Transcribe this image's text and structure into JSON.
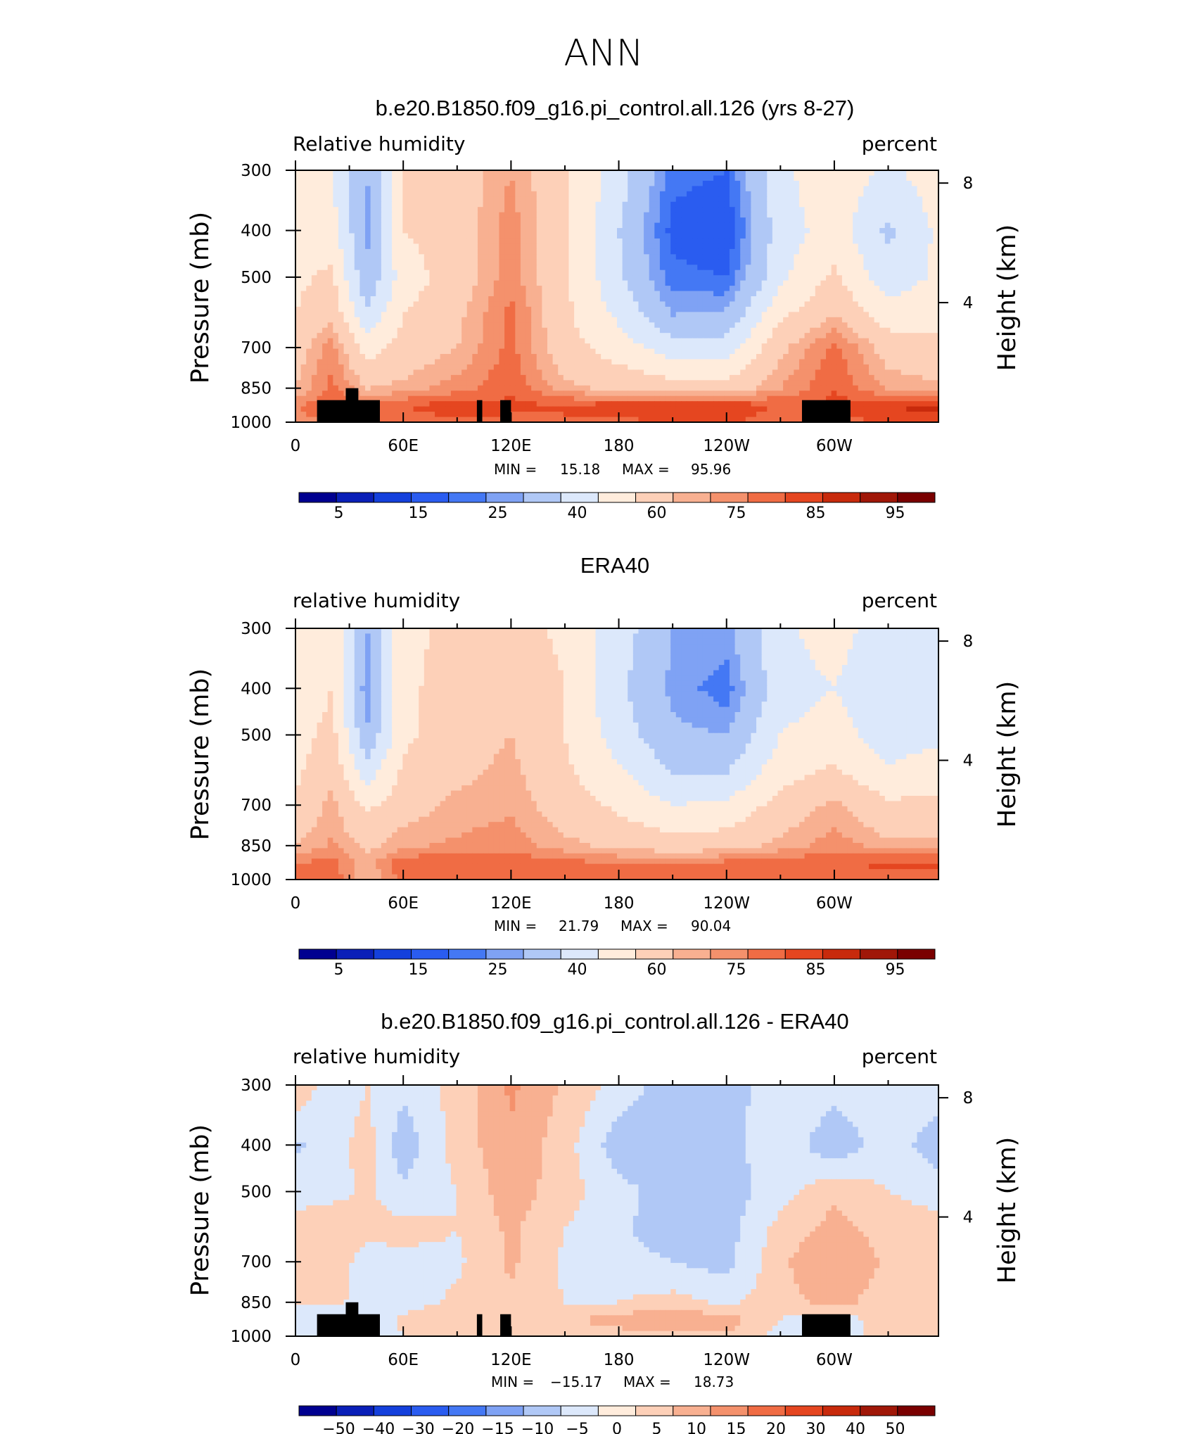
{
  "figure_title": "ANN",
  "colors": {
    "rh_scale": [
      "#000090",
      "#0a1fb8",
      "#1440dc",
      "#2a5cf0",
      "#4478f4",
      "#7fa2f4",
      "#b0c8f6",
      "#dce8fb",
      "#ffecdc",
      "#fdd0b8",
      "#f8b091",
      "#f4916c",
      "#f06c44",
      "#e54620",
      "#c82a0c",
      "#a01708",
      "#7a0000"
    ],
    "land": "#000000"
  },
  "chart_data": [
    {
      "type": "heatmap",
      "title": "b.e20.B1850.f09_g16.pi_control.all.126 (yrs 8-27)",
      "left_label": "Relative humidity",
      "right_label": "percent",
      "ylabel": "Pressure (mb)",
      "y2label": "Height (km)",
      "x_ticks": [
        "0",
        "60E",
        "120E",
        "180",
        "120W",
        "60W"
      ],
      "x_tick_lon": [
        0,
        60,
        120,
        180,
        240,
        300
      ],
      "xlim": [
        0,
        358
      ],
      "y_ticks": [
        "300",
        "400",
        "500",
        "700",
        "850",
        "1000"
      ],
      "y_tick_p": [
        300,
        400,
        500,
        700,
        850,
        1000
      ],
      "ylim": [
        1000,
        300
      ],
      "y2_ticks": [
        "8",
        "4"
      ],
      "y2_tick_km": [
        8,
        4
      ],
      "min_label": "MIN =",
      "min_value": "15.18",
      "max_label": "MAX =",
      "max_value": "95.96",
      "colorbar_labels": [
        "5",
        "15",
        "25",
        "40",
        "60",
        "75",
        "85",
        "95"
      ],
      "has_land_mask": true,
      "fields": [
        {
          "lon": [
            0,
            20,
            40,
            60,
            90,
            120,
            150,
            180,
            210,
            240,
            270,
            300,
            330,
            358
          ],
          "p": [
            300,
            400,
            500,
            600,
            700,
            850,
            925,
            1000
          ],
          "rows": [
            [
              55,
              50,
              30,
              62,
              65,
              75,
              62,
              45,
              22,
              20,
              48,
              56,
              48,
              55
            ],
            [
              55,
              55,
              28,
              60,
              65,
              78,
              62,
              40,
              18,
              15,
              45,
              55,
              38,
              52
            ],
            [
              58,
              62,
              32,
              55,
              65,
              78,
              62,
              42,
              22,
              20,
              48,
              62,
              44,
              52
            ],
            [
              60,
              68,
              42,
              60,
              68,
              82,
              62,
              48,
              30,
              32,
              58,
              70,
              55,
              58
            ],
            [
              65,
              78,
              55,
              64,
              70,
              82,
              64,
              55,
              45,
              45,
              68,
              82,
              66,
              62
            ],
            [
              70,
              82,
              70,
              72,
              78,
              84,
              72,
              68,
              65,
              65,
              75,
              85,
              74,
              72
            ],
            [
              80,
              84,
              82,
              85,
              88,
              86,
              86,
              88,
              89,
              90,
              84,
              86,
              90,
              92
            ],
            [
              78,
              80,
              80,
              82,
              84,
              84,
              84,
              84,
              85,
              86,
              82,
              82,
              86,
              88
            ]
          ]
        }
      ]
    },
    {
      "type": "heatmap",
      "title": "ERA40",
      "left_label": "relative humidity",
      "right_label": "percent",
      "ylabel": "Pressure (mb)",
      "y2label": "Height (km)",
      "x_ticks": [
        "0",
        "60E",
        "120E",
        "180",
        "120W",
        "60W"
      ],
      "x_tick_lon": [
        0,
        60,
        120,
        180,
        240,
        300
      ],
      "xlim": [
        0,
        358
      ],
      "y_ticks": [
        "300",
        "400",
        "500",
        "700",
        "850",
        "1000"
      ],
      "y_tick_p": [
        300,
        400,
        500,
        700,
        850,
        1000
      ],
      "ylim": [
        1000,
        300
      ],
      "y2_ticks": [
        "8",
        "4"
      ],
      "y2_tick_km": [
        8,
        4
      ],
      "min_label": "MIN =",
      "min_value": "21.79",
      "max_label": "MAX =",
      "max_value": "90.04",
      "colorbar_labels": [
        "5",
        "15",
        "25",
        "40",
        "60",
        "75",
        "85",
        "95"
      ],
      "has_land_mask": false,
      "fields": [
        {
          "lon": [
            0,
            20,
            40,
            60,
            90,
            120,
            150,
            180,
            210,
            240,
            270,
            300,
            330,
            358
          ],
          "p": [
            300,
            400,
            500,
            600,
            700,
            850,
            925,
            1000
          ],
          "rows": [
            [
              50,
              58,
              30,
              58,
              62,
              64,
              58,
              45,
              30,
              28,
              48,
              54,
              45,
              48
            ],
            [
              50,
              60,
              25,
              58,
              64,
              68,
              60,
              42,
              28,
              22,
              46,
              50,
              40,
              44
            ],
            [
              55,
              64,
              32,
              58,
              66,
              70,
              60,
              45,
              32,
              30,
              50,
              55,
              44,
              48
            ],
            [
              58,
              68,
              45,
              62,
              68,
              72,
              62,
              52,
              40,
              40,
              56,
              62,
              52,
              56
            ],
            [
              62,
              72,
              58,
              66,
              72,
              74,
              65,
              58,
              50,
              52,
              64,
              72,
              62,
              62
            ],
            [
              70,
              76,
              68,
              74,
              76,
              78,
              72,
              68,
              65,
              66,
              72,
              78,
              72,
              72
            ],
            [
              80,
              82,
              72,
              84,
              84,
              84,
              82,
              80,
              80,
              82,
              84,
              84,
              86,
              86
            ],
            [
              82,
              84,
              70,
              82,
              82,
              82,
              82,
              82,
              82,
              82,
              84,
              84,
              84,
              84
            ]
          ]
        }
      ]
    },
    {
      "type": "heatmap",
      "title": "b.e20.B1850.f09_g16.pi_control.all.126 - ERA40",
      "left_label": "relative humidity",
      "right_label": "percent",
      "ylabel": "Pressure (mb)",
      "y2label": "Height (km)",
      "x_ticks": [
        "0",
        "60E",
        "120E",
        "180",
        "120W",
        "60W"
      ],
      "x_tick_lon": [
        0,
        60,
        120,
        180,
        240,
        300
      ],
      "xlim": [
        0,
        358
      ],
      "y_ticks": [
        "300",
        "400",
        "500",
        "700",
        "850",
        "1000"
      ],
      "y_tick_p": [
        300,
        400,
        500,
        700,
        850,
        1000
      ],
      "ylim": [
        1000,
        300
      ],
      "y2_ticks": [
        "8",
        "4"
      ],
      "y2_tick_km": [
        8,
        4
      ],
      "min_label": "MIN =",
      "min_value": "−15.17",
      "max_label": "MAX =",
      "max_value": "18.73",
      "colorbar_labels": [
        "−50",
        "−40",
        "−30",
        "−20",
        "−15",
        "−10",
        "−5",
        "0",
        "5",
        "10",
        "15",
        "20",
        "30",
        "40",
        "50"
      ],
      "has_land_mask": true,
      "fields": [
        {
          "lon": [
            0,
            20,
            40,
            60,
            90,
            120,
            150,
            180,
            210,
            240,
            270,
            300,
            330,
            358
          ],
          "p": [
            300,
            400,
            500,
            600,
            700,
            850,
            925,
            1000
          ],
          "rows": [
            [
              4,
              -3,
              0,
              -4,
              2,
              11,
              4,
              -2,
              -8,
              -8,
              -1,
              -3,
              -2,
              -2
            ],
            [
              -6,
              -2,
              2,
              -8,
              2,
              9,
              2,
              -8,
              -9,
              -7,
              -1,
              -9,
              -2,
              -8
            ],
            [
              -2,
              -2,
              1,
              -4,
              0,
              8,
              2,
              -3,
              -8,
              -8,
              -2,
              4,
              0,
              -2
            ],
            [
              2,
              5,
              2,
              2,
              0,
              6,
              0,
              -4,
              -8,
              -7,
              2,
              7,
              3,
              2
            ],
            [
              2,
              4,
              -3,
              -2,
              -1,
              6,
              -1,
              -3,
              -5,
              -7,
              4,
              10,
              4,
              0
            ],
            [
              0,
              2,
              -3,
              -2,
              1,
              4,
              0,
              0,
              2,
              -1,
              3,
              7,
              2,
              0
            ],
            [
              0,
              -6,
              -3,
              1,
              3,
              2,
              4,
              8,
              9,
              8,
              0,
              -5,
              4,
              5
            ],
            [
              -3,
              -4,
              -2,
              0,
              1,
              2,
              2,
              2,
              3,
              4,
              -2,
              -2,
              2,
              4
            ]
          ]
        }
      ]
    }
  ],
  "diff_scale_levels": [
    -50,
    -40,
    -30,
    -20,
    -15,
    -10,
    -5,
    0,
    5,
    10,
    15,
    20,
    30,
    40,
    50
  ],
  "rh_scale_levels": [
    5,
    10,
    15,
    20,
    25,
    30,
    40,
    50,
    60,
    70,
    75,
    80,
    85,
    90,
    95,
    100
  ]
}
